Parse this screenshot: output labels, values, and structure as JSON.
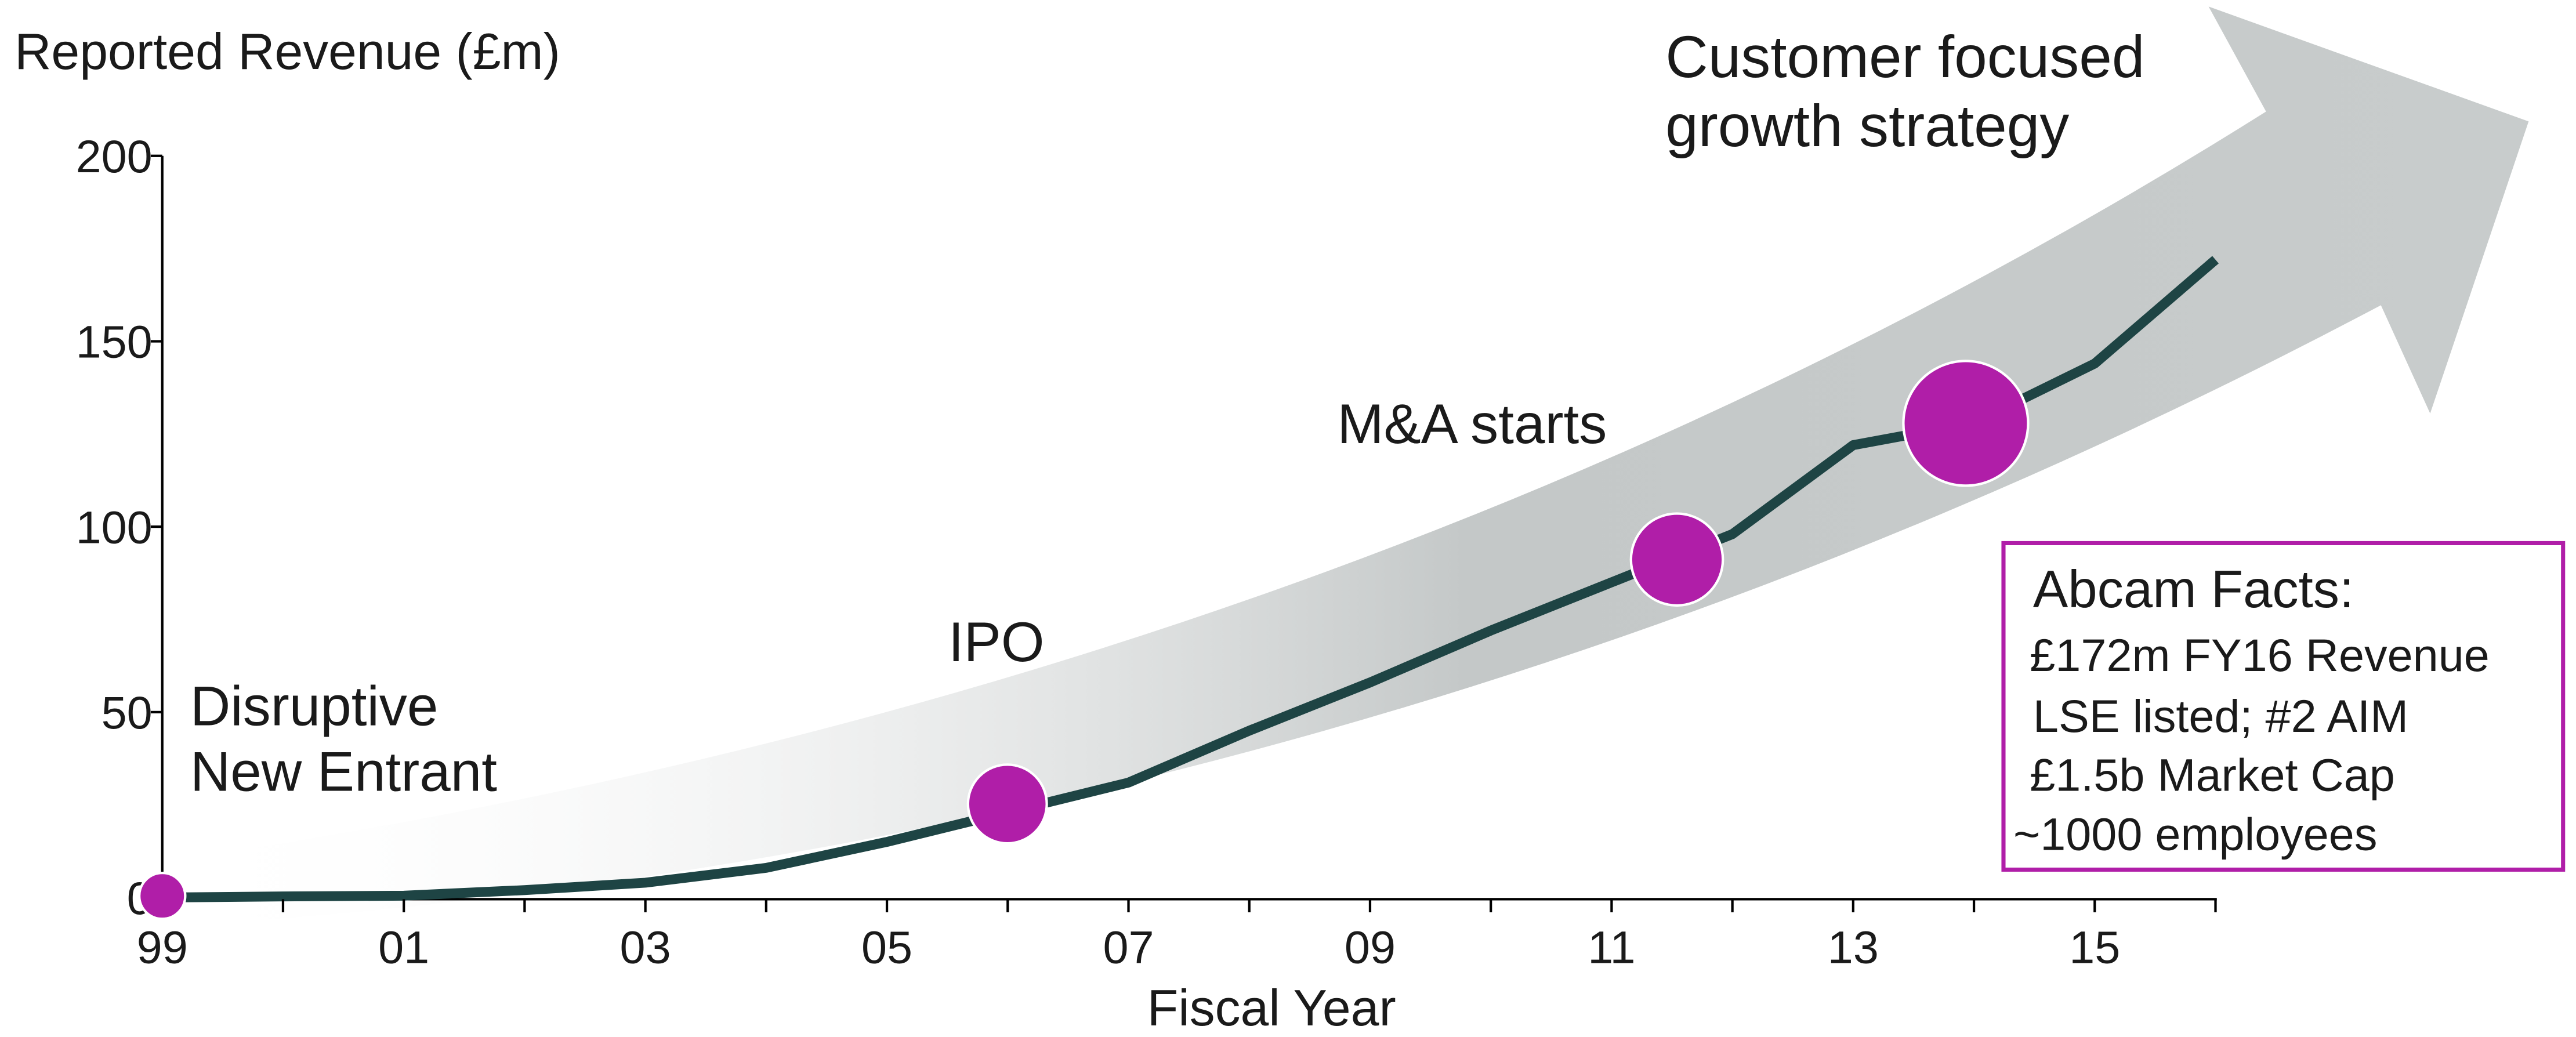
{
  "chart_data": {
    "type": "line",
    "title_y": "Reported Revenue (£m)",
    "xlabel": "Fiscal Year",
    "categories": [
      "99",
      null,
      "01",
      null,
      "03",
      null,
      "05",
      null,
      "07",
      null,
      "09",
      null,
      "11",
      null,
      "13",
      null,
      "15",
      null
    ],
    "series": [
      {
        "name": "Reported Revenue",
        "color": "#1e4444",
        "values": [
          0,
          0.3,
          0.5,
          2,
          4,
          8,
          15,
          23,
          31,
          45,
          58,
          72,
          85,
          98,
          122,
          128,
          144,
          172
        ]
      }
    ],
    "ylim": [
      0,
      200
    ],
    "yticks": [
      0,
      50,
      100,
      150,
      200
    ],
    "annotations": {
      "entrant": [
        "Disruptive",
        "New Entrant"
      ],
      "ipo": "IPO",
      "ma": "M&A starts",
      "growth": [
        "Customer focused",
        "growth strategy"
      ]
    },
    "facts": {
      "title": "Abcam Facts:",
      "lines": [
        "£172m FY16 Revenue",
        "LSE listed; #2 AIM",
        "£1.5b Market Cap",
        "~1000 employees"
      ]
    }
  }
}
